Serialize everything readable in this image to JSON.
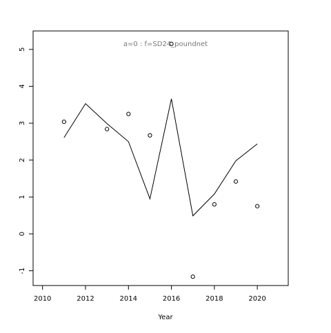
{
  "chart_data": {
    "type": "line",
    "title": "a=0  :  f=SD24_poundnet",
    "xlabel": "Year",
    "x": [
      2011,
      2012,
      2013,
      2014,
      2015,
      2016,
      2017,
      2018,
      2019,
      2020
    ],
    "series": [
      {
        "style": "line",
        "color": "#000000",
        "values": [
          2.61,
          3.53,
          2.99,
          2.5,
          0.95,
          3.66,
          0.49,
          1.08,
          1.98,
          2.44
        ]
      },
      {
        "style": "points",
        "color": "#000000",
        "values": [
          3.04,
          null,
          2.84,
          3.25,
          2.67,
          5.15,
          -1.16,
          0.8,
          1.42,
          0.75
        ]
      }
    ],
    "xlim": [
      2009.56,
      2021.44
    ],
    "xticks": [
      2010,
      2012,
      2014,
      2016,
      2018,
      2020
    ],
    "ylim": [
      -1.4,
      5.5
    ],
    "yticks": [
      -1,
      0,
      1,
      2,
      3,
      4,
      5
    ]
  }
}
